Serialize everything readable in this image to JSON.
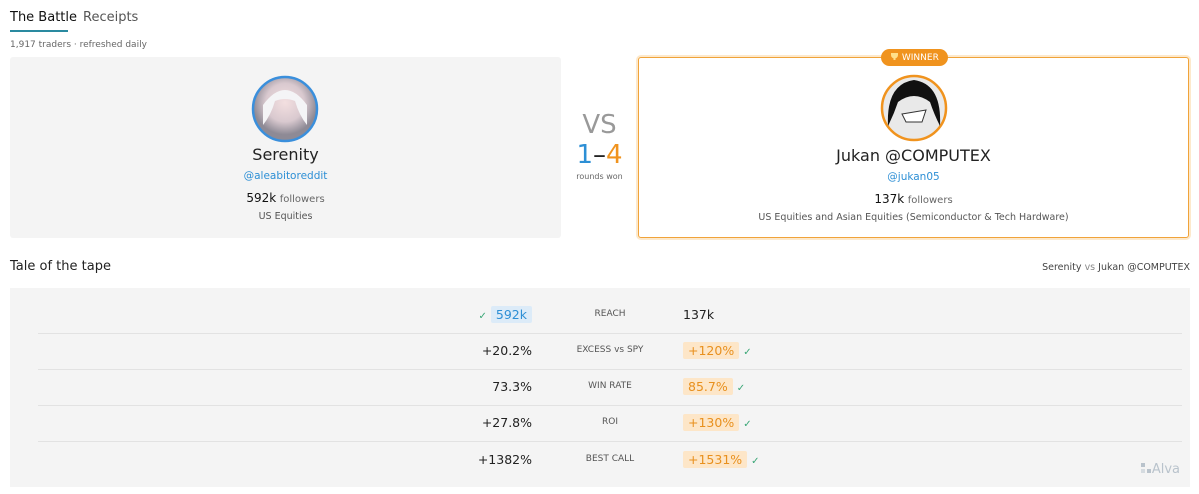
{
  "tabs": [
    "The Battle",
    "Receipts"
  ],
  "subtitle": "1,917 traders · refreshed daily",
  "fighters": [
    {
      "name": "Serenity",
      "handle": "@aleabitoreddit",
      "followers": "592k",
      "followers_label": "followers",
      "markets": "US Equities"
    },
    {
      "name": "Jukan @COMPUTEX",
      "handle": "@jukan05",
      "followers": "137k",
      "followers_label": "followers",
      "markets": "US Equities and Asian Equities (Semiconductor & Tech Hardware)"
    }
  ],
  "winner_badge": "WINNER",
  "versus": {
    "label": "VS",
    "score_left": "1",
    "dash": "–",
    "score_right": "4",
    "caption": "rounds won"
  },
  "tale": {
    "title": "Tale of the tape",
    "matchup": {
      "left": "Serenity",
      "vs": "vs",
      "right": "Jukan @COMPUTEX"
    },
    "rows": [
      {
        "left": "592k",
        "metric": "REACH",
        "right": "137k"
      },
      {
        "left": "+20.2%",
        "metric": "EXCESS vs SPY",
        "right": "+120%"
      },
      {
        "left": "73.3%",
        "metric": "WIN RATE",
        "right": "85.7%"
      },
      {
        "left": "+27.8%",
        "metric": "ROI",
        "right": "+130%"
      },
      {
        "left": "+1382%",
        "metric": "BEST CALL",
        "right": "+1531%"
      }
    ]
  },
  "brand": "Alva"
}
